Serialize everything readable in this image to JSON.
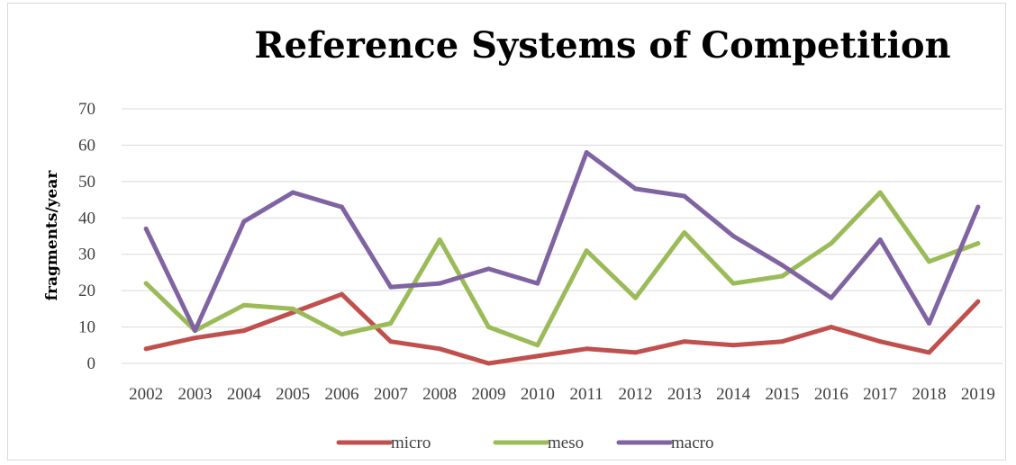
{
  "chart_data": {
    "type": "line",
    "title": "Reference Systems of Competition",
    "xlabel": "",
    "ylabel": "fragments/year",
    "ylim": [
      0,
      70
    ],
    "yticks": [
      "0",
      "10",
      "20",
      "30",
      "40",
      "50",
      "60",
      "70"
    ],
    "grid": true,
    "legend_position": "bottom",
    "categories": [
      "2002",
      "2003",
      "2004",
      "2005",
      "2006",
      "2007",
      "2008",
      "2009",
      "2010",
      "2011",
      "2012",
      "2013",
      "2014",
      "2015",
      "2016",
      "2017",
      "2018",
      "2019"
    ],
    "series": [
      {
        "name": "micro",
        "color": "#c0504d",
        "values": [
          4,
          7,
          9,
          14,
          19,
          6,
          4,
          0,
          2,
          4,
          3,
          6,
          5,
          6,
          10,
          6,
          3,
          17
        ]
      },
      {
        "name": "meso",
        "color": "#9bbb59",
        "values": [
          22,
          9,
          16,
          15,
          8,
          11,
          34,
          10,
          5,
          31,
          18,
          36,
          22,
          24,
          33,
          47,
          28,
          33
        ]
      },
      {
        "name": "macro",
        "color": "#8064a2",
        "values": [
          37,
          9,
          39,
          47,
          43,
          21,
          22,
          26,
          22,
          58,
          48,
          46,
          35,
          27,
          18,
          34,
          11,
          43
        ]
      }
    ]
  }
}
